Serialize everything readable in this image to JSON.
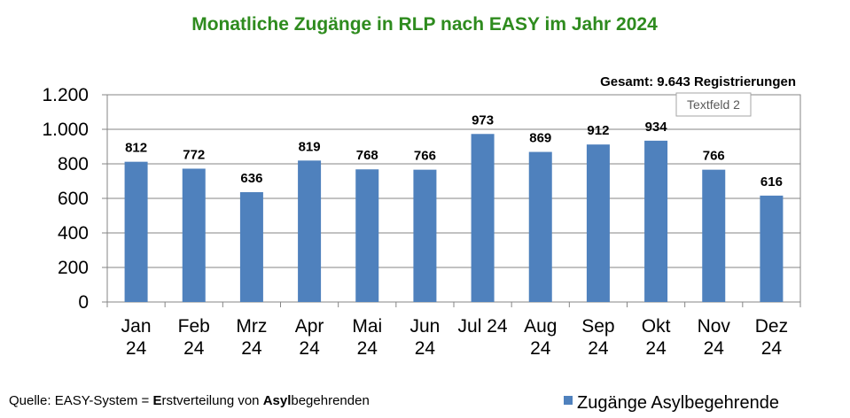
{
  "chart_data": {
    "type": "bar",
    "title": "Monatliche Zugänge in RLP nach EASY  im Jahr 2024",
    "categories": [
      [
        "Jan",
        "24"
      ],
      [
        "Feb",
        "24"
      ],
      [
        "Mrz",
        "24"
      ],
      [
        "Apr",
        "24"
      ],
      [
        "Mai",
        "24"
      ],
      [
        "Jun",
        "24"
      ],
      [
        "Jul 24"
      ],
      [
        "Aug",
        "24"
      ],
      [
        "Sep",
        "24"
      ],
      [
        "Okt",
        "24"
      ],
      [
        "Nov",
        "24"
      ],
      [
        "Dez",
        "24"
      ]
    ],
    "series": [
      {
        "name": "Zugänge Asylbegehrende",
        "values": [
          812,
          772,
          636,
          819,
          768,
          766,
          973,
          869,
          912,
          934,
          766,
          616
        ],
        "color": "#4f81bd"
      }
    ],
    "data_labels": [
      "812",
      "772",
      "636",
      "819",
      "768",
      "766",
      "973",
      "869",
      "912",
      "934",
      "766",
      "616"
    ],
    "ylim": [
      0,
      1200
    ],
    "yticks": [
      0,
      200,
      400,
      600,
      800,
      1000,
      1200
    ],
    "ytick_labels": [
      "0",
      "200",
      "400",
      "600",
      "800",
      "1.000",
      "1.200"
    ],
    "grid": true,
    "legend_position": "bottom-right",
    "annotation_total": "Gesamt:  9.643 Registrierungen",
    "annotation_textbox": "Textfeld 2",
    "source": {
      "prefix": "Quelle: EASY-System = ",
      "bold1": "E",
      "middle": "rstverteilung von ",
      "bold2": "Asyl",
      "suffix": "begehrenden"
    }
  }
}
